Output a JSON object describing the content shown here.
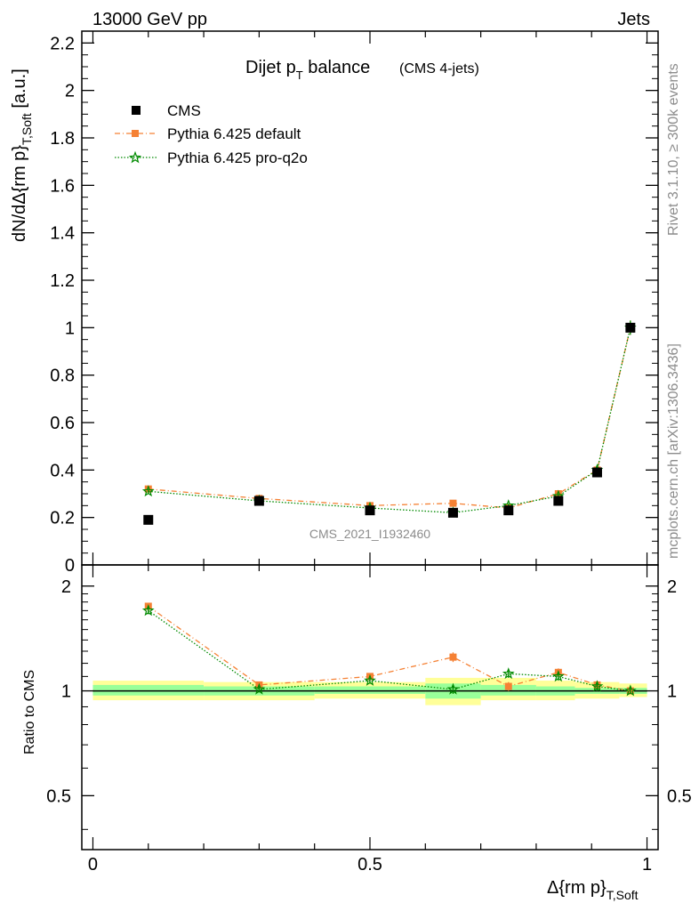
{
  "header": {
    "energy": "13000 GeV pp",
    "process": "Jets",
    "side_rivet": "Rivet 3.1.10, ≥ 300k events",
    "side_mcplots": "mcplots.cern.ch [arXiv:1306.3436]",
    "watermark": "CMS_2021_I1932460"
  },
  "title": {
    "main": "Dijet p",
    "main_sub": "T",
    "main_rest": " balance",
    "small": "(CMS 4-jets)"
  },
  "axes": {
    "ylabel_main": "dN/dΔ{rm p}",
    "ylabel_main_sub": "T,Soft",
    "ylabel_main_unit": " [a.u.]",
    "ylabel_ratio": "Ratio to CMS",
    "xlabel": "Δ{rm p}",
    "xlabel_sub": "T,Soft"
  },
  "legend": [
    {
      "label": "CMS",
      "color": "#000000",
      "marker": "square"
    },
    {
      "label": "Pythia 6.425 default",
      "color": "#f58134",
      "marker": "square",
      "dash": "dashdot"
    },
    {
      "label": "Pythia 6.425 pro-q2o",
      "color": "#008a00",
      "marker": "star",
      "dash": "dotted"
    }
  ],
  "chart_data": [
    {
      "type": "scatter",
      "panel": "main",
      "x": [
        0.1,
        0.3,
        0.5,
        0.65,
        0.75,
        0.84,
        0.91,
        0.97
      ],
      "xlim": [
        -0.02,
        1.02
      ],
      "ylim": [
        0,
        2.25
      ],
      "yticks": [
        0,
        0.2,
        0.4,
        0.6,
        0.8,
        1,
        1.2,
        1.4,
        1.6,
        1.8,
        2,
        2.2
      ],
      "ytick_labels": [
        "0",
        "0.2",
        "0.4",
        "0.6",
        "0.8",
        "1",
        "1.2",
        "1.4",
        "1.6",
        "1.8",
        "2",
        "2.2"
      ],
      "series": [
        {
          "name": "CMS",
          "values": [
            0.19,
            0.27,
            0.23,
            0.22,
            0.23,
            0.27,
            0.39,
            1.0
          ],
          "color": "#000000"
        },
        {
          "name": "Pythia 6.425 default",
          "values": [
            0.32,
            0.28,
            0.25,
            0.26,
            0.24,
            0.3,
            0.4,
            1.0
          ],
          "errors": [
            0.01,
            0.008,
            0.008,
            0.008,
            0.008,
            0.01,
            0.012,
            0.03
          ],
          "color": "#f58134"
        },
        {
          "name": "Pythia 6.425 pro-q2o",
          "values": [
            0.31,
            0.27,
            0.24,
            0.22,
            0.25,
            0.29,
            0.4,
            1.0
          ],
          "errors": [
            0.01,
            0.008,
            0.008,
            0.008,
            0.008,
            0.01,
            0.012,
            0.03
          ],
          "color": "#008a00"
        }
      ]
    },
    {
      "type": "scatter",
      "panel": "ratio",
      "ylabel": "Ratio to CMS",
      "xlim": [
        -0.02,
        1.02
      ],
      "ylim": [
        0.35,
        2.3
      ],
      "log_y": true,
      "yticks": [
        0.5,
        1,
        2
      ],
      "ytick_labels": [
        "0.5",
        "1",
        "2"
      ],
      "xticks": [
        0,
        0.5,
        1
      ],
      "xtick_labels": [
        "0",
        "0.5",
        "1"
      ],
      "x": [
        0.1,
        0.3,
        0.5,
        0.65,
        0.75,
        0.84,
        0.91,
        0.97
      ],
      "bands": {
        "edges": [
          0.0,
          0.2,
          0.4,
          0.6,
          0.7,
          0.8,
          0.87,
          0.95,
          1.0
        ],
        "yellow": [
          [
            0.94,
            1.07
          ],
          [
            0.94,
            1.06
          ],
          [
            0.95,
            1.06
          ],
          [
            0.91,
            1.09
          ],
          [
            0.94,
            1.09
          ],
          [
            0.94,
            1.07
          ],
          [
            0.95,
            1.06
          ],
          [
            0.96,
            1.05
          ]
        ],
        "green": [
          [
            0.97,
            1.04
          ],
          [
            0.97,
            1.03
          ],
          [
            0.98,
            1.03
          ],
          [
            0.95,
            1.05
          ],
          [
            0.97,
            1.04
          ],
          [
            0.97,
            1.03
          ],
          [
            0.98,
            1.02
          ],
          [
            0.98,
            1.02
          ]
        ]
      },
      "series": [
        {
          "name": "Pythia 6.425 default",
          "values": [
            1.75,
            1.04,
            1.1,
            1.25,
            1.03,
            1.13,
            1.04,
            1.0
          ],
          "errors": [
            0.04,
            0.02,
            0.02,
            0.04,
            0.03,
            0.03,
            0.03,
            0.02
          ],
          "color": "#f58134"
        },
        {
          "name": "Pythia 6.425 pro-q2o",
          "values": [
            1.7,
            1.01,
            1.07,
            1.01,
            1.12,
            1.1,
            1.03,
            1.0
          ],
          "errors": [
            0.04,
            0.02,
            0.02,
            0.03,
            0.03,
            0.03,
            0.03,
            0.02
          ],
          "color": "#008a00"
        }
      ]
    }
  ]
}
